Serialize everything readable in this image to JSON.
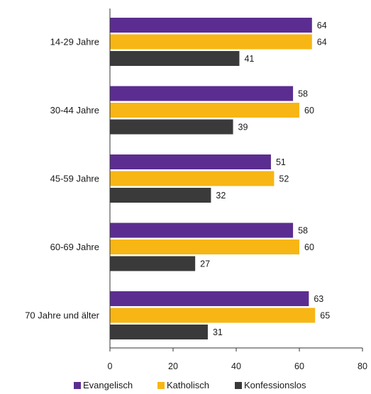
{
  "chart_data": {
    "type": "bar",
    "orientation": "horizontal",
    "categories": [
      "14-29 Jahre",
      "30-44 Jahre",
      "45-59 Jahre",
      "60-69 Jahre",
      "70 Jahre und älter"
    ],
    "series": [
      {
        "name": "Evangelisch",
        "color": "#5b2d91",
        "values": [
          64,
          58,
          51,
          58,
          63
        ]
      },
      {
        "name": "Katholisch",
        "color": "#f7b614",
        "values": [
          64,
          60,
          52,
          60,
          65
        ]
      },
      {
        "name": "Konfessionslos",
        "color": "#3a3a3a",
        "values": [
          41,
          39,
          32,
          27,
          31
        ]
      }
    ],
    "xlim": [
      0,
      80
    ],
    "xticks": [
      0,
      20,
      40,
      60,
      80
    ],
    "grid": false,
    "legend": "bottom"
  }
}
